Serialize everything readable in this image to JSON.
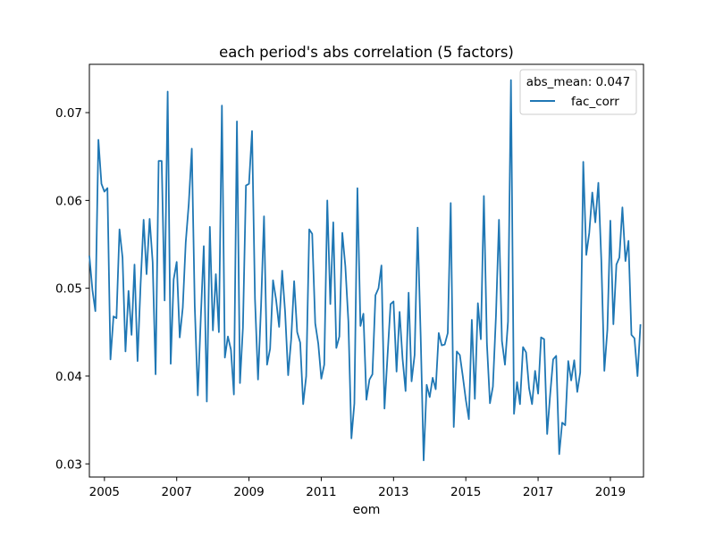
{
  "chart_data": {
    "type": "line",
    "title": "each period's abs correlation (5 factors)",
    "xlabel": "eom",
    "ylabel": "",
    "x_start": "2004-08",
    "x_frequency": "monthly",
    "xlim": [
      "2004-08",
      "2019-12"
    ],
    "ylim": [
      0.0285,
      0.0755
    ],
    "xticks": [
      {
        "value": "2005-01",
        "label": "2005"
      },
      {
        "value": "2007-01",
        "label": "2007"
      },
      {
        "value": "2009-01",
        "label": "2009"
      },
      {
        "value": "2011-01",
        "label": "2011"
      },
      {
        "value": "2013-01",
        "label": "2013"
      },
      {
        "value": "2015-01",
        "label": "2015"
      },
      {
        "value": "2017-01",
        "label": "2017"
      },
      {
        "value": "2019-01",
        "label": "2019"
      }
    ],
    "yticks": [
      {
        "value": 0.03,
        "label": "0.03"
      },
      {
        "value": 0.04,
        "label": "0.04"
      },
      {
        "value": 0.05,
        "label": "0.05"
      },
      {
        "value": 0.06,
        "label": "0.06"
      },
      {
        "value": 0.07,
        "label": "0.07"
      }
    ],
    "grid": false,
    "legend": {
      "title": "abs_mean: 0.047",
      "placement": "upper-right"
    },
    "series": [
      {
        "name": "fac_corr",
        "color": "#1f77b4",
        "values": [
          0.0537,
          0.0498,
          0.0474,
          0.0669,
          0.0619,
          0.061,
          0.0614,
          0.0419,
          0.0468,
          0.0466,
          0.0567,
          0.0535,
          0.0428,
          0.0497,
          0.0447,
          0.0527,
          0.0417,
          0.0504,
          0.0578,
          0.0516,
          0.0579,
          0.053,
          0.0402,
          0.0645,
          0.0645,
          0.0486,
          0.0724,
          0.0414,
          0.051,
          0.053,
          0.0444,
          0.0478,
          0.0552,
          0.0596,
          0.0659,
          0.048,
          0.0378,
          0.0467,
          0.0548,
          0.0371,
          0.057,
          0.0452,
          0.0516,
          0.045,
          0.0708,
          0.0421,
          0.0445,
          0.043,
          0.0379,
          0.069,
          0.0392,
          0.0455,
          0.0617,
          0.0619,
          0.0679,
          0.0488,
          0.0396,
          0.048,
          0.0582,
          0.0413,
          0.0431,
          0.0509,
          0.0487,
          0.0456,
          0.052,
          0.0473,
          0.0401,
          0.0442,
          0.0508,
          0.045,
          0.0438,
          0.0368,
          0.04,
          0.0567,
          0.0562,
          0.046,
          0.0437,
          0.0397,
          0.0413,
          0.06,
          0.0482,
          0.0575,
          0.0432,
          0.0445,
          0.0563,
          0.0525,
          0.0462,
          0.0329,
          0.0369,
          0.0614,
          0.0457,
          0.0471,
          0.0373,
          0.0396,
          0.0402,
          0.0492,
          0.05,
          0.0526,
          0.0363,
          0.0423,
          0.0482,
          0.0485,
          0.0405,
          0.0473,
          0.042,
          0.0383,
          0.0495,
          0.0394,
          0.0424,
          0.0569,
          0.0445,
          0.0304,
          0.039,
          0.0376,
          0.0398,
          0.0385,
          0.0449,
          0.0435,
          0.0436,
          0.0449,
          0.0597,
          0.0342,
          0.0428,
          0.0424,
          0.04,
          0.0373,
          0.0351,
          0.0464,
          0.0374,
          0.0483,
          0.0442,
          0.0605,
          0.0437,
          0.0369,
          0.0388,
          0.0468,
          0.0578,
          0.044,
          0.0413,
          0.0462,
          0.0737,
          0.0357,
          0.0393,
          0.0368,
          0.0433,
          0.0427,
          0.0386,
          0.0368,
          0.0406,
          0.038,
          0.0444,
          0.0442,
          0.0334,
          0.0378,
          0.0419,
          0.0423,
          0.0311,
          0.0347,
          0.0344,
          0.0417,
          0.0395,
          0.0418,
          0.0382,
          0.0404,
          0.0644,
          0.0538,
          0.0563,
          0.0609,
          0.0575,
          0.062,
          0.0532,
          0.0406,
          0.0453,
          0.0577,
          0.0459,
          0.0527,
          0.0535,
          0.0592,
          0.0531,
          0.0554,
          0.0447,
          0.0443,
          0.04,
          0.0459
        ]
      }
    ]
  }
}
